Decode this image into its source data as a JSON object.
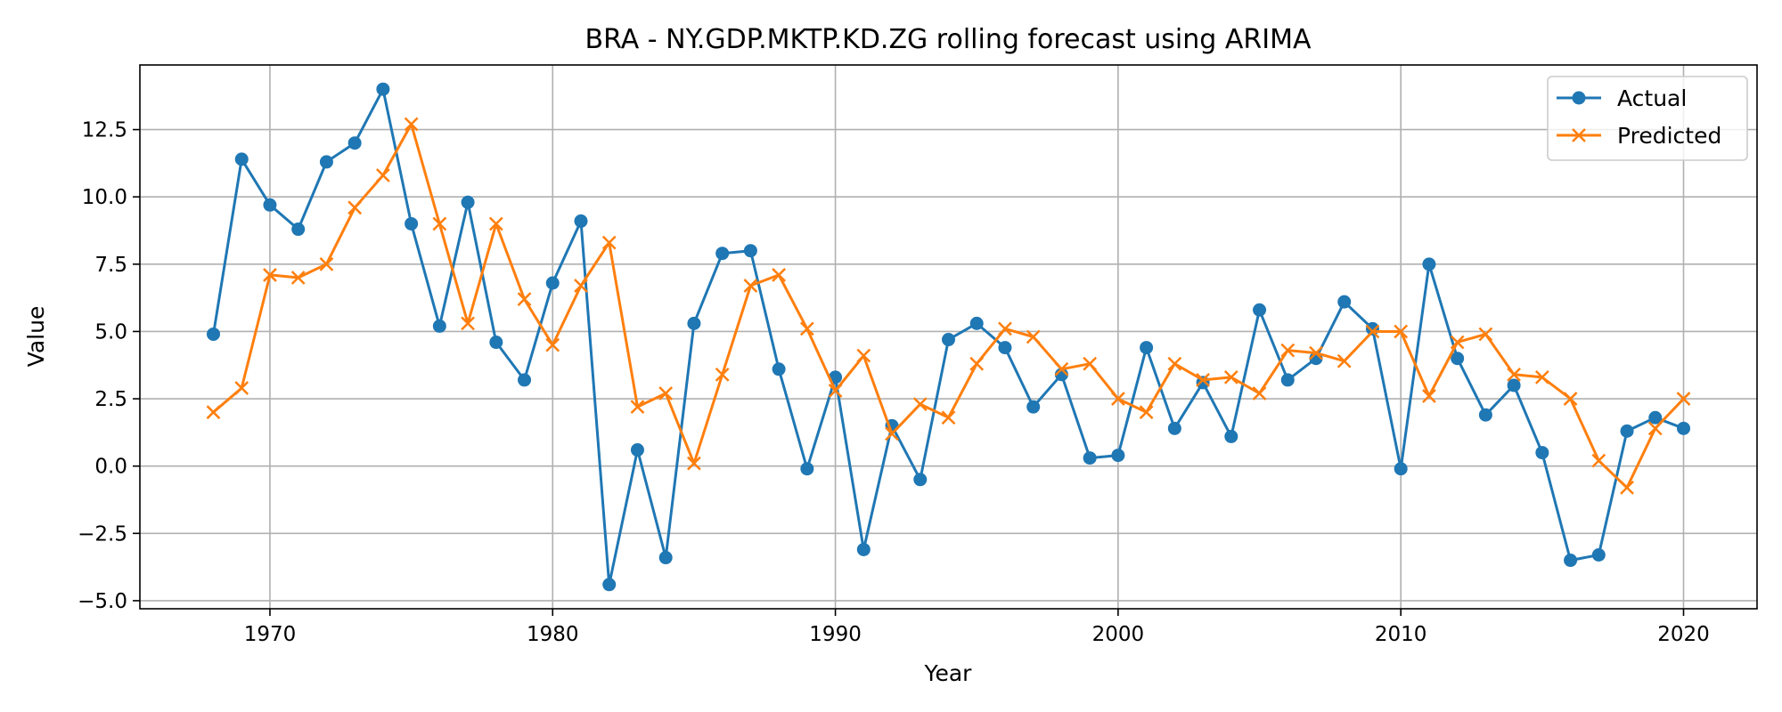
{
  "chart_data": {
    "type": "line",
    "title": "BRA - NY.GDP.MKTP.KD.ZG rolling forecast using ARIMA",
    "xlabel": "Year",
    "ylabel": "Value",
    "xlim": [
      1965.4,
      2022.6
    ],
    "ylim": [
      -5.3,
      14.9
    ],
    "xticks": [
      1970,
      1980,
      1990,
      2000,
      2010,
      2020
    ],
    "xtick_labels": [
      "1970",
      "1980",
      "1990",
      "2000",
      "2010",
      "2020"
    ],
    "yticks": [
      -5.0,
      -2.5,
      0.0,
      2.5,
      5.0,
      7.5,
      10.0,
      12.5
    ],
    "ytick_labels": [
      "−5.0",
      "−2.5",
      "0.0",
      "2.5",
      "5.0",
      "7.5",
      "10.0",
      "12.5"
    ],
    "grid": true,
    "legend_position": "top-right",
    "x": [
      1968,
      1969,
      1970,
      1971,
      1972,
      1973,
      1974,
      1975,
      1976,
      1977,
      1978,
      1979,
      1980,
      1981,
      1982,
      1983,
      1984,
      1985,
      1986,
      1987,
      1988,
      1989,
      1990,
      1991,
      1992,
      1993,
      1994,
      1995,
      1996,
      1997,
      1998,
      1999,
      2000,
      2001,
      2002,
      2003,
      2004,
      2005,
      2006,
      2007,
      2008,
      2009,
      2010,
      2011,
      2012,
      2013,
      2014,
      2015,
      2016,
      2017,
      2018,
      2019,
      2020
    ],
    "series": [
      {
        "name": "Actual",
        "color": "#1f77b4",
        "marker": "circle",
        "values": [
          4.9,
          11.4,
          9.7,
          8.8,
          11.3,
          12.0,
          14.0,
          9.0,
          5.2,
          9.8,
          4.6,
          3.2,
          6.8,
          9.1,
          -4.4,
          0.6,
          -3.4,
          5.3,
          7.9,
          8.0,
          3.6,
          -0.1,
          3.3,
          -3.1,
          1.5,
          -0.5,
          4.7,
          5.3,
          4.4,
          2.2,
          3.4,
          0.3,
          0.4,
          4.4,
          1.4,
          3.1,
          1.1,
          5.8,
          3.2,
          4.0,
          6.1,
          5.1,
          -0.1,
          7.5,
          4.0,
          1.9,
          3.0,
          0.5,
          -3.5,
          -3.3,
          1.3,
          1.8,
          1.4
        ]
      },
      {
        "name": "Predicted",
        "color": "#ff7f0e",
        "marker": "x",
        "values": [
          2.0,
          2.9,
          7.1,
          7.0,
          7.5,
          9.6,
          10.8,
          12.7,
          9.0,
          5.3,
          9.0,
          6.2,
          4.5,
          6.7,
          8.3,
          2.2,
          2.7,
          0.1,
          3.4,
          6.7,
          7.1,
          5.1,
          2.8,
          4.1,
          1.2,
          2.3,
          1.8,
          3.8,
          5.1,
          4.8,
          3.6,
          3.8,
          2.5,
          2.0,
          3.8,
          3.2,
          3.3,
          2.7,
          4.3,
          4.2,
          3.9,
          5.0,
          5.0,
          2.6,
          4.6,
          4.9,
          3.4,
          3.3,
          2.5,
          0.2,
          -0.8,
          1.4,
          2.5
        ]
      }
    ]
  }
}
